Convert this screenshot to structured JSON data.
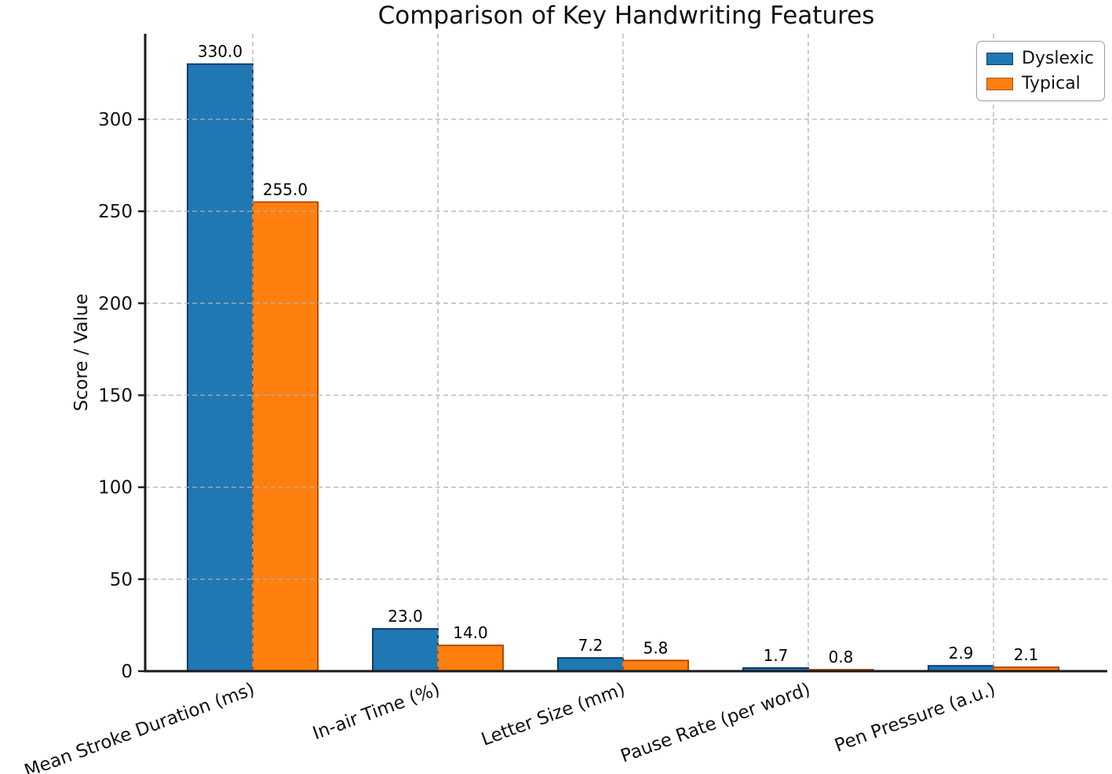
{
  "figure": {
    "background": "#ffffff"
  },
  "chart_data": {
    "type": "bar",
    "title": "Comparison of Key Handwriting Features",
    "xlabel": "",
    "ylabel": "Score / Value",
    "categories": [
      "Mean Stroke Duration (ms)",
      "In-air Time (%)",
      "Letter Size (mm)",
      "Pause Rate (per word)",
      "Pen Pressure (a.u.)"
    ],
    "series": [
      {
        "name": "Dyslexic",
        "values": [
          330.0,
          23.0,
          7.2,
          1.7,
          2.9
        ],
        "labels": [
          "330.0",
          "23.0",
          "7.2",
          "1.7",
          "2.9"
        ],
        "fill": "#1f77b4",
        "edge": "#0a3d6a"
      },
      {
        "name": "Typical",
        "values": [
          255.0,
          14.0,
          5.8,
          0.8,
          2.1
        ],
        "labels": [
          "255.0",
          "14.0",
          "5.8",
          "0.8",
          "2.1"
        ],
        "fill": "#ff7f0e",
        "edge": "#b34a00"
      }
    ],
    "y_ticks": [
      "0",
      "50",
      "100",
      "150",
      "200",
      "250",
      "300"
    ],
    "y_tick_values": [
      0,
      50,
      100,
      150,
      200,
      250,
      300
    ],
    "ylim": [
      0,
      346.5
    ],
    "x_tick_rotation_deg": 20,
    "grid": {
      "visible": true,
      "style": "dashed",
      "color": "#b0b0b0",
      "above_bars": true
    },
    "legend": {
      "position": "upper right",
      "entries": [
        "Dyslexic",
        "Typical"
      ]
    },
    "axis_color": "#1a1a1a",
    "text_color": "#111111"
  }
}
